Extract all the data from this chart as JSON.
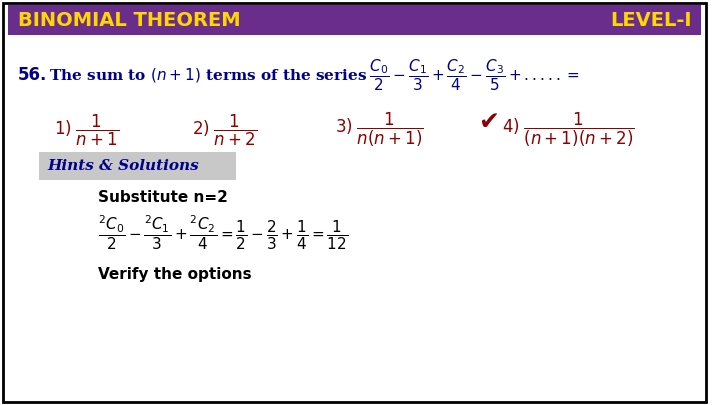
{
  "bg_color": "#ffffff",
  "border_color": "#000000",
  "header_bg": "#6B2D8B",
  "header_text_color": "#FFD700",
  "header_left": "BINOMIAL THEOREM",
  "header_right": "LEVEL-I",
  "header_fontsize": 14,
  "question_color": "#00008B",
  "question_number": "56.",
  "question_text": "The sum to (n+1) terms of the series",
  "question_series": "\\frac{C_0}{2} - \\frac{C_1}{3} + \\frac{C_2}{4} - \\frac{C_3}{5} + ..... =",
  "options_color": "#8B0000",
  "option1": "\\frac{1}{n+1}",
  "option2": "\\frac{1}{n+2}",
  "option3": "\\frac{1}{n(n+1)}",
  "option4": "\\frac{1}{(n+1)(n+2)}",
  "correct_option": 4,
  "checkmark_color": "#8B0000",
  "hints_bg": "#C8C8C8",
  "hints_text": "Hints & Solutions",
  "hints_color": "#00008B",
  "substitute_text": "Substitute n=2",
  "formula_line": "\\frac{^2C_0}{2} - \\frac{^2C_1}{3} + \\frac{^2C_2}{4} = \\frac{1}{2} - \\frac{2}{3} + \\frac{1}{4} = \\frac{1}{12}",
  "verify_text": "Verify the options",
  "body_text_color": "#000000"
}
